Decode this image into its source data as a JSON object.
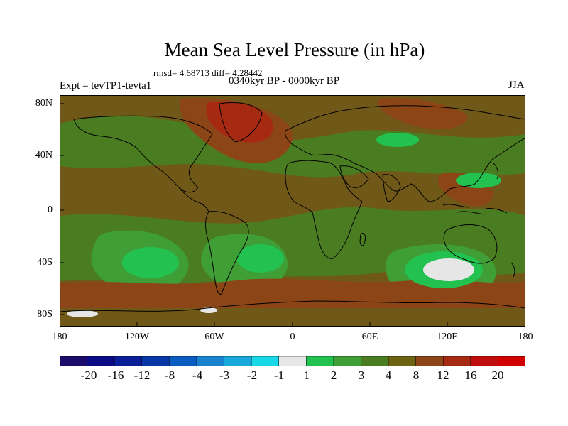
{
  "title": "Mean Sea Level Pressure (in hPa)",
  "stats": "rmsd= 4.68713 diff= 4.28442",
  "experiment": "Expt = tevTP1-tevta1",
  "period": "0340kyr BP - 0000kyr BP",
  "season": "JJA",
  "lat_labels": [
    "80N",
    "40N",
    "0",
    "40S",
    "80S"
  ],
  "lon_labels": [
    "180",
    "120W",
    "60W",
    "0",
    "60E",
    "120E",
    "180"
  ],
  "colorbar": {
    "labels": [
      "-20",
      "-16",
      "-12",
      "-8",
      "-4",
      "-3",
      "-2",
      "-1",
      "1",
      "2",
      "3",
      "4",
      "8",
      "12",
      "16",
      "20"
    ],
    "colors": [
      "#1b0b6b",
      "#0a0a84",
      "#0b2098",
      "#0838a8",
      "#0a5cc0",
      "#1a82cc",
      "#19a8dc",
      "#18d8e8",
      "#e6e6e6",
      "#22c150",
      "#3f9e35",
      "#4a7d22",
      "#6b6312",
      "#8b4516",
      "#a62a12",
      "#c00e0e",
      "#d10000"
    ]
  },
  "colors": {
    "background_field": "#6f5818",
    "low_anomaly": "#3f9e35",
    "strong_low_anomaly": "#22c150",
    "near_zero": "#e6e6e6",
    "high_anomaly": "#8b4516",
    "strong_high_anomaly": "#a62a12"
  }
}
